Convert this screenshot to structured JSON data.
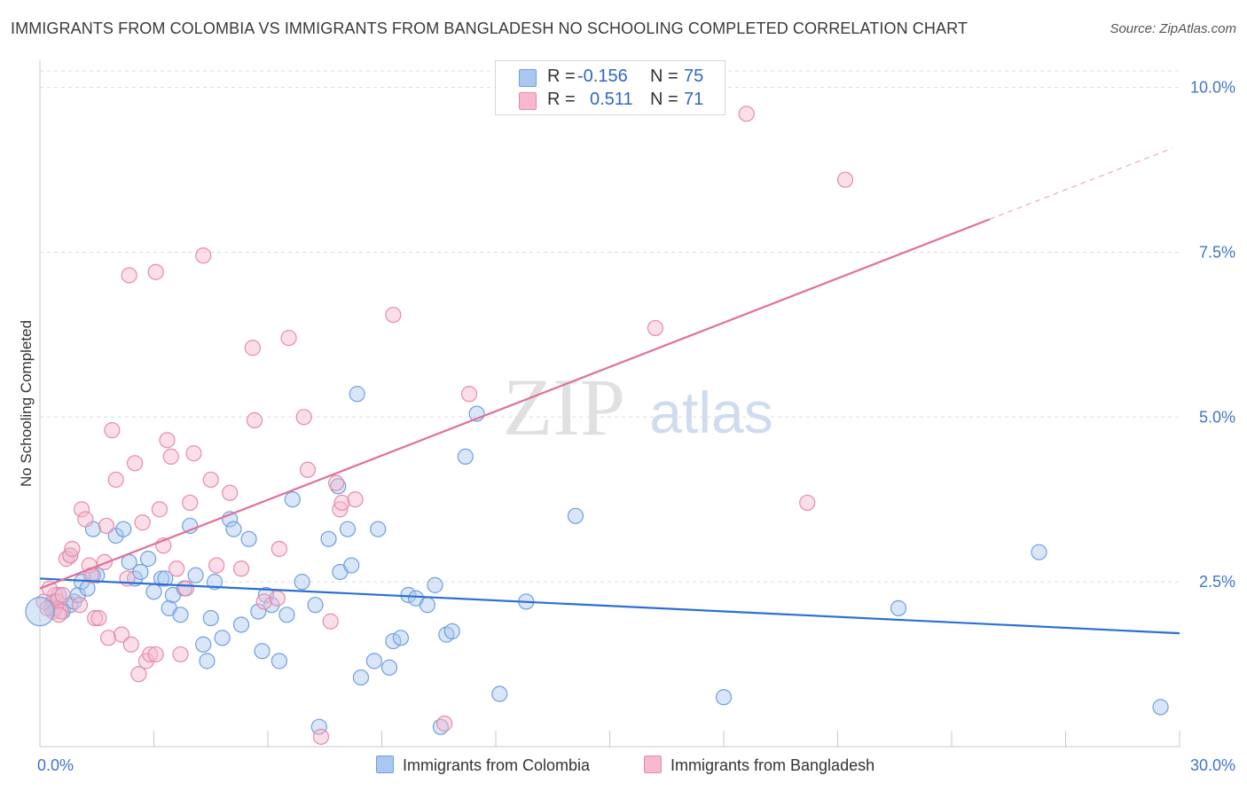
{
  "title": "IMMIGRANTS FROM COLOMBIA VS IMMIGRANTS FROM BANGLADESH NO SCHOOLING COMPLETED CORRELATION CHART",
  "source": "Source: ZipAtlas.com",
  "watermark": {
    "zip": "ZIP",
    "atlas": "atlas"
  },
  "legend": {
    "rows": [
      {
        "r_label": "R =",
        "r_value": "-0.156",
        "n_label": "N =",
        "n_value": "75"
      },
      {
        "r_label": "R =",
        "r_value": "0.511",
        "n_label": "N =",
        "n_value": "71"
      }
    ]
  },
  "bottom_legend": [
    "Immigrants from Colombia",
    "Immigrants from Bangladesh"
  ],
  "colors": {
    "blue_fill": "#a9c8f0",
    "blue_stroke": "#6e9fe0",
    "blue_line": "#2b6fd4",
    "pink_fill": "#f7b8cb",
    "pink_stroke": "#e88aa8",
    "pink_line": "#e0709a",
    "axis_text": "#3f74c9",
    "grid": "#dddddd"
  },
  "chart_data": {
    "type": "scatter",
    "title": "IMMIGRANTS FROM COLOMBIA VS IMMIGRANTS FROM BANGLADESH NO SCHOOLING COMPLETED CORRELATION CHART",
    "xlabel": "",
    "ylabel": "No Schooling Completed",
    "xlim": [
      0,
      30
    ],
    "ylim": [
      0,
      10.25
    ],
    "x_tick_labels": [
      "0.0%",
      "30.0%"
    ],
    "y_ticks": [
      2.5,
      5.0,
      7.5,
      10.0
    ],
    "y_tick_labels": [
      "2.5%",
      "5.0%",
      "7.5%",
      "10.0%"
    ],
    "grid": true,
    "legend_position": "top-center",
    "series": [
      {
        "name": "Immigrants from Colombia",
        "color": "#a9c8f0",
        "trend": {
          "x": [
            0,
            30
          ],
          "y": [
            2.55,
            1.72
          ]
        },
        "points": [
          [
            0.5,
            2.3
          ],
          [
            0.35,
            2.2
          ],
          [
            0.4,
            2.1
          ],
          [
            0.6,
            2.05
          ],
          [
            0.8,
            2.15
          ],
          [
            0.9,
            2.2
          ],
          [
            1.0,
            2.3
          ],
          [
            1.1,
            2.5
          ],
          [
            1.25,
            2.4
          ],
          [
            1.4,
            2.6
          ],
          [
            1.5,
            2.6
          ],
          [
            0.8,
            2.9
          ],
          [
            1.4,
            3.3
          ],
          [
            2.0,
            3.2
          ],
          [
            2.2,
            3.3
          ],
          [
            2.35,
            2.8
          ],
          [
            2.5,
            2.55
          ],
          [
            2.65,
            2.65
          ],
          [
            2.85,
            2.85
          ],
          [
            3.0,
            2.35
          ],
          [
            3.2,
            2.55
          ],
          [
            3.3,
            2.55
          ],
          [
            3.4,
            2.1
          ],
          [
            3.5,
            2.3
          ],
          [
            3.7,
            2.0
          ],
          [
            3.8,
            2.4
          ],
          [
            3.95,
            3.35
          ],
          [
            4.1,
            2.6
          ],
          [
            4.3,
            1.55
          ],
          [
            4.4,
            1.3
          ],
          [
            4.5,
            1.95
          ],
          [
            4.6,
            2.5
          ],
          [
            4.8,
            1.65
          ],
          [
            5.0,
            3.45
          ],
          [
            5.1,
            3.3
          ],
          [
            5.3,
            1.85
          ],
          [
            5.5,
            3.15
          ],
          [
            5.75,
            2.05
          ],
          [
            5.85,
            1.45
          ],
          [
            5.95,
            2.3
          ],
          [
            6.1,
            2.15
          ],
          [
            6.3,
            1.3
          ],
          [
            6.5,
            2.0
          ],
          [
            6.65,
            3.75
          ],
          [
            6.9,
            2.5
          ],
          [
            7.25,
            2.15
          ],
          [
            7.35,
            0.3
          ],
          [
            7.6,
            3.15
          ],
          [
            7.85,
            3.95
          ],
          [
            7.9,
            2.65
          ],
          [
            8.1,
            3.3
          ],
          [
            8.2,
            2.75
          ],
          [
            8.45,
            1.05
          ],
          [
            8.8,
            1.3
          ],
          [
            8.9,
            3.3
          ],
          [
            9.2,
            1.2
          ],
          [
            9.3,
            1.6
          ],
          [
            9.5,
            1.65
          ],
          [
            9.7,
            2.3
          ],
          [
            9.9,
            2.25
          ],
          [
            10.2,
            2.15
          ],
          [
            10.4,
            2.45
          ],
          [
            10.55,
            0.3
          ],
          [
            10.7,
            1.7
          ],
          [
            10.85,
            1.75
          ],
          [
            8.35,
            5.35
          ],
          [
            11.2,
            4.4
          ],
          [
            11.5,
            5.05
          ],
          [
            12.1,
            0.8
          ],
          [
            12.8,
            2.2
          ],
          [
            14.1,
            3.5
          ],
          [
            18.0,
            0.75
          ],
          [
            22.6,
            2.1
          ],
          [
            26.3,
            2.95
          ],
          [
            29.5,
            0.6
          ]
        ]
      },
      {
        "name": "Immigrants from Bangladesh",
        "color": "#f7b8cb",
        "trend": {
          "x": [
            0,
            25
          ],
          "y": [
            2.4,
            8.0
          ]
        },
        "points": [
          [
            0.3,
            2.1
          ],
          [
            0.35,
            2.05
          ],
          [
            0.4,
            2.3
          ],
          [
            0.45,
            2.2
          ],
          [
            0.55,
            2.05
          ],
          [
            0.6,
            2.3
          ],
          [
            0.7,
            2.85
          ],
          [
            0.8,
            2.9
          ],
          [
            0.85,
            3.0
          ],
          [
            1.05,
            2.15
          ],
          [
            1.1,
            3.6
          ],
          [
            1.2,
            3.45
          ],
          [
            1.3,
            2.75
          ],
          [
            1.35,
            2.6
          ],
          [
            1.45,
            1.95
          ],
          [
            1.55,
            1.95
          ],
          [
            1.7,
            2.8
          ],
          [
            1.75,
            3.35
          ],
          [
            1.8,
            1.65
          ],
          [
            1.9,
            4.8
          ],
          [
            2.0,
            4.05
          ],
          [
            2.15,
            1.7
          ],
          [
            2.3,
            2.55
          ],
          [
            2.4,
            1.55
          ],
          [
            2.5,
            4.3
          ],
          [
            2.6,
            1.1
          ],
          [
            2.7,
            3.4
          ],
          [
            2.8,
            1.3
          ],
          [
            2.9,
            1.4
          ],
          [
            3.05,
            1.4
          ],
          [
            3.15,
            3.6
          ],
          [
            3.25,
            3.05
          ],
          [
            3.35,
            4.65
          ],
          [
            3.45,
            4.4
          ],
          [
            3.6,
            2.7
          ],
          [
            3.7,
            1.4
          ],
          [
            3.85,
            2.4
          ],
          [
            3.95,
            3.7
          ],
          [
            4.05,
            4.45
          ],
          [
            4.5,
            4.05
          ],
          [
            4.65,
            2.75
          ],
          [
            5.0,
            3.85
          ],
          [
            5.3,
            2.7
          ],
          [
            5.6,
            6.05
          ],
          [
            5.65,
            4.95
          ],
          [
            5.9,
            2.2
          ],
          [
            6.25,
            2.25
          ],
          [
            6.3,
            3.0
          ],
          [
            6.55,
            6.2
          ],
          [
            6.95,
            5.0
          ],
          [
            7.05,
            4.2
          ],
          [
            7.4,
            0.15
          ],
          [
            7.65,
            1.9
          ],
          [
            7.8,
            4.0
          ],
          [
            7.9,
            3.6
          ],
          [
            7.95,
            3.7
          ],
          [
            8.3,
            3.75
          ],
          [
            9.3,
            6.55
          ],
          [
            10.65,
            0.35
          ],
          [
            11.3,
            5.35
          ],
          [
            2.35,
            7.15
          ],
          [
            3.05,
            7.2
          ],
          [
            4.3,
            7.45
          ],
          [
            16.2,
            6.35
          ],
          [
            18.6,
            9.6
          ],
          [
            20.2,
            3.7
          ],
          [
            21.2,
            8.6
          ],
          [
            0.1,
            2.2
          ],
          [
            0.2,
            2.1
          ],
          [
            0.25,
            2.4
          ],
          [
            0.5,
            2.0
          ]
        ]
      }
    ]
  }
}
